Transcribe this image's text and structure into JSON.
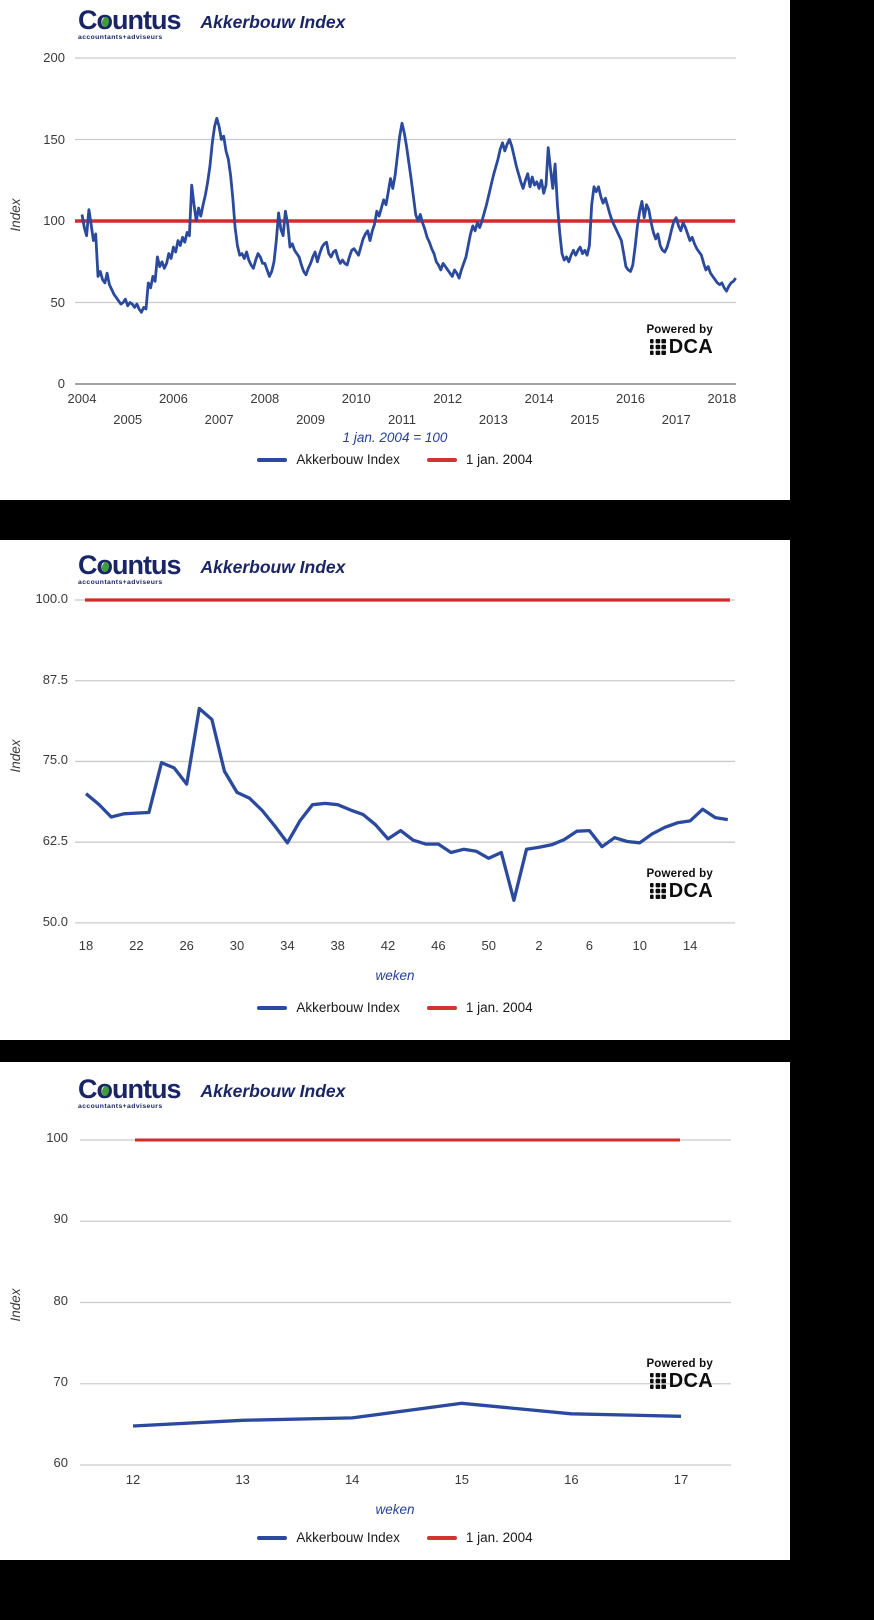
{
  "brand": {
    "name": "Countus",
    "tagline": "accountants+adviseurs"
  },
  "powered_by": {
    "label": "Powered by",
    "brand": "DCA"
  },
  "legend": {
    "series": "Akkerbouw Index",
    "baseline": "1 jan. 2004"
  },
  "colors": {
    "series_blue": "#2b4a9e",
    "baseline_red": "#d22b2b",
    "grid_gray": "#cbcbcb",
    "axis_dark": "#6e6e6e",
    "brand_navy": "#1a2566",
    "brand_green": "#3f9e3a",
    "caption_blue": "#27409b",
    "panel_white": "#ffffff",
    "page_black": "#000000"
  },
  "chart_data": [
    {
      "type": "line",
      "title": "Akkerbouw Index",
      "ylabel": "Index",
      "xlabel": "",
      "caption": "1 jan. 2004 = 100",
      "ylim": [
        0,
        200
      ],
      "yticks": [
        200,
        150,
        100,
        50,
        0
      ],
      "xticks": [
        "2004",
        "2005",
        "2006",
        "2007",
        "2008",
        "2009",
        "2010",
        "2011",
        "2012",
        "2013",
        "2014",
        "2015",
        "2016",
        "2017",
        "2018"
      ],
      "legend_position": "bottom",
      "grid": true,
      "baseline": {
        "label": "1 jan. 2004",
        "value": 100
      },
      "series": {
        "name": "Akkerbouw Index",
        "x_unit": "year",
        "x_start": 2004,
        "x_step": 0.05,
        "x_range": [
          2004,
          2018.3
        ],
        "values": [
          104,
          96,
          91,
          107,
          98,
          88,
          92,
          66,
          69,
          64,
          62,
          68,
          61,
          58,
          55,
          53,
          51,
          49,
          50,
          52,
          48,
          50,
          49,
          47,
          49,
          46,
          44,
          47,
          46,
          62,
          59,
          66,
          63,
          78,
          72,
          75,
          71,
          74,
          80,
          77,
          84,
          81,
          88,
          85,
          90,
          87,
          93,
          91,
          122,
          110,
          100,
          108,
          103,
          110,
          116,
          124,
          134,
          148,
          158,
          163,
          158,
          150,
          152,
          143,
          138,
          128,
          114,
          96,
          85,
          79,
          80,
          77,
          81,
          76,
          73,
          71,
          76,
          80,
          78,
          74,
          74,
          70,
          66,
          69,
          75,
          88,
          105,
          95,
          91,
          106,
          98,
          84,
          86,
          82,
          80,
          78,
          73,
          69,
          67,
          71,
          74,
          78,
          81,
          75,
          80,
          84,
          86,
          87,
          80,
          78,
          81,
          82,
          77,
          74,
          76,
          74,
          73,
          78,
          82,
          83,
          81,
          79,
          84,
          89,
          92,
          94,
          88,
          94,
          98,
          106,
          103,
          108,
          113,
          110,
          118,
          126,
          120,
          128,
          140,
          152,
          160,
          154,
          146,
          136,
          126,
          115,
          104,
          100,
          104,
          99,
          95,
          90,
          87,
          83,
          80,
          75,
          73,
          70,
          74,
          72,
          70,
          68,
          66,
          70,
          68,
          65,
          70,
          74,
          78,
          85,
          92,
          97,
          94,
          99,
          96,
          100,
          105,
          110,
          116,
          122,
          128,
          133,
          138,
          144,
          148,
          143,
          147,
          150,
          146,
          140,
          134,
          129,
          124,
          120,
          125,
          129,
          121,
          127,
          122,
          124,
          120,
          125,
          117,
          122,
          145,
          132,
          120,
          135,
          110,
          93,
          80,
          76,
          78,
          75,
          79,
          82,
          79,
          82,
          84,
          80,
          82,
          79,
          85,
          110,
          121,
          118,
          121,
          115,
          111,
          114,
          109,
          104,
          100,
          97,
          94,
          91,
          88,
          80,
          72,
          70,
          69,
          73,
          84,
          97,
          106,
          112,
          102,
          110,
          107,
          99,
          93,
          89,
          92,
          85,
          82,
          81,
          84,
          89,
          95,
          100,
          102,
          97,
          94,
          99,
          96,
          92,
          88,
          90,
          86,
          83,
          81,
          79,
          74,
          70,
          72,
          68,
          66,
          64,
          62,
          61,
          62,
          59,
          57,
          60,
          62,
          63,
          65
        ]
      }
    },
    {
      "type": "line",
      "title": "Akkerbouw Index",
      "ylabel": "Index",
      "xlabel": "weken",
      "ylim": [
        50,
        100
      ],
      "ytick_labels": [
        "100.0",
        "87.5",
        "75.0",
        "62.5",
        "50.0"
      ],
      "ytick_values": [
        100,
        87.5,
        75,
        62.5,
        50
      ],
      "xticks": [
        18,
        22,
        26,
        30,
        34,
        38,
        42,
        46,
        50,
        2,
        6,
        10,
        14
      ],
      "legend_position": "bottom",
      "grid": true,
      "baseline": {
        "label": "1 jan. 2004",
        "value": 100
      },
      "series": {
        "name": "Akkerbouw Index",
        "x_unit": "week",
        "weeks": [
          18,
          19,
          20,
          21,
          22,
          23,
          24,
          25,
          26,
          27,
          28,
          29,
          30,
          31,
          32,
          33,
          34,
          35,
          36,
          37,
          38,
          39,
          40,
          41,
          42,
          43,
          44,
          45,
          46,
          47,
          48,
          49,
          50,
          51,
          52,
          1,
          2,
          3,
          4,
          5,
          6,
          7,
          8,
          9,
          10,
          11,
          12,
          13,
          14,
          15,
          16,
          17
        ],
        "values": [
          70.0,
          68.4,
          66.4,
          66.9,
          67.0,
          67.1,
          74.8,
          74.0,
          71.5,
          83.2,
          81.5,
          73.5,
          70.2,
          69.3,
          67.4,
          65.0,
          62.4,
          65.8,
          68.3,
          68.5,
          68.3,
          67.5,
          66.8,
          65.2,
          63.0,
          64.3,
          62.8,
          62.2,
          62.2,
          60.9,
          61.4,
          61.1,
          60.0,
          60.9,
          53.5,
          61.4,
          61.7,
          62.1,
          62.9,
          64.2,
          64.3,
          61.8,
          63.2,
          62.6,
          62.4,
          63.8,
          64.8,
          65.5,
          65.8,
          67.6,
          66.3,
          66.0
        ]
      }
    },
    {
      "type": "line",
      "title": "Akkerbouw Index",
      "ylabel": "Index",
      "xlabel": "weken",
      "ylim": [
        60,
        100
      ],
      "yticks": [
        100,
        90,
        80,
        70,
        60
      ],
      "xticks": [
        12,
        13,
        14,
        15,
        16,
        17
      ],
      "legend_position": "bottom",
      "grid": true,
      "baseline": {
        "label": "1 jan. 2004",
        "value": 100
      },
      "series": {
        "name": "Akkerbouw Index",
        "x_unit": "week",
        "weeks": [
          12,
          13,
          14,
          15,
          16,
          17
        ],
        "values": [
          64.8,
          65.5,
          65.8,
          67.6,
          66.3,
          66.0
        ]
      }
    }
  ]
}
